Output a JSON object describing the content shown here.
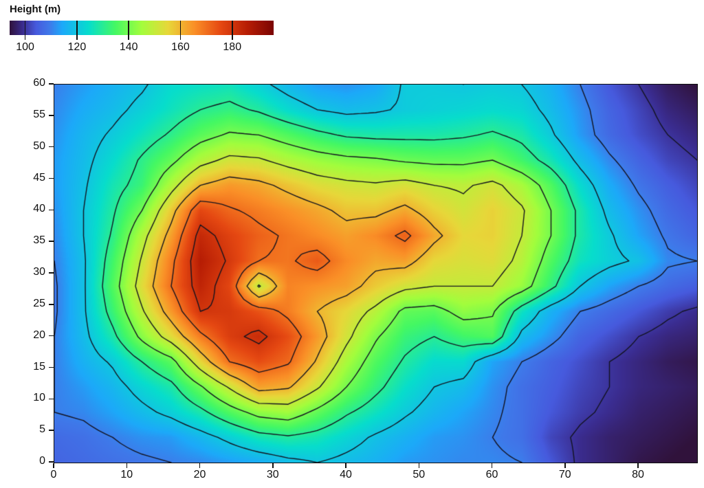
{
  "title": {
    "text": "Height (m)"
  },
  "colorbar": {
    "vmin": 94,
    "vmax": 196,
    "ticks": [
      {
        "v": 100,
        "label": "100"
      },
      {
        "v": 120,
        "label": "120"
      },
      {
        "v": 140,
        "label": "140"
      },
      {
        "v": 160,
        "label": "160"
      },
      {
        "v": 180,
        "label": "180"
      }
    ]
  },
  "axes": {
    "x_range": [
      0,
      88
    ],
    "y_range": [
      0,
      60
    ],
    "x_ticks": [
      {
        "v": 0,
        "label": "0"
      },
      {
        "v": 10,
        "label": "10"
      },
      {
        "v": 20,
        "label": "20"
      },
      {
        "v": 30,
        "label": "30"
      },
      {
        "v": 40,
        "label": "40"
      },
      {
        "v": 50,
        "label": "50"
      },
      {
        "v": 60,
        "label": "60"
      },
      {
        "v": 70,
        "label": "70"
      },
      {
        "v": 80,
        "label": "80"
      }
    ],
    "y_ticks": [
      {
        "v": 0,
        "label": "0"
      },
      {
        "v": 5,
        "label": "5"
      },
      {
        "v": 10,
        "label": "10"
      },
      {
        "v": 15,
        "label": "15"
      },
      {
        "v": 20,
        "label": "20"
      },
      {
        "v": 25,
        "label": "25"
      },
      {
        "v": 30,
        "label": "30"
      },
      {
        "v": 35,
        "label": "35"
      },
      {
        "v": 40,
        "label": "40"
      },
      {
        "v": 45,
        "label": "45"
      },
      {
        "v": 50,
        "label": "50"
      },
      {
        "v": 55,
        "label": "55"
      },
      {
        "v": 60,
        "label": "60"
      }
    ]
  },
  "chart_data": {
    "type": "heatmap",
    "subtype": "filled-contour-with-contour-lines",
    "title": "Height (m)",
    "xlabel": "",
    "ylabel": "",
    "x_range": [
      0,
      88
    ],
    "y_range": [
      0,
      60
    ],
    "z_units": "m",
    "grid": {
      "x_start": 0,
      "x_step": 4,
      "nx": 23,
      "y_start": 0,
      "y_step": 4,
      "ny": 16
    },
    "z": [
      [
        106,
        107,
        108,
        109,
        110,
        111,
        113,
        115,
        118,
        120,
        118,
        116,
        113,
        112,
        111,
        111,
        110,
        104,
        99,
        97,
        95,
        94,
        93
      ],
      [
        107,
        108,
        110,
        112,
        113,
        117,
        122,
        127,
        129,
        127,
        123,
        119,
        116,
        113,
        112,
        110,
        108,
        102,
        99,
        97,
        96,
        95,
        94
      ],
      [
        110,
        111,
        114,
        118,
        122,
        128,
        136,
        143,
        145,
        138,
        131,
        126,
        121,
        117,
        114,
        111,
        108,
        104,
        101,
        99,
        97,
        96,
        95
      ],
      [
        110,
        113,
        117,
        123,
        128,
        139,
        151,
        163,
        161,
        151,
        140,
        132,
        125,
        120,
        118,
        112,
        108,
        105,
        102,
        100,
        98,
        97,
        96
      ],
      [
        110,
        116,
        121,
        130,
        137,
        155,
        170,
        175,
        171,
        159,
        146,
        136,
        129,
        124,
        124,
        114,
        110,
        106,
        103,
        100,
        98,
        96,
        95
      ],
      [
        110,
        118,
        128,
        142,
        154,
        168,
        178,
        182,
        175,
        164,
        152,
        141,
        133,
        130,
        134,
        136,
        118,
        112,
        106,
        103,
        100,
        98,
        97
      ],
      [
        109,
        119,
        133,
        149,
        164,
        180,
        179,
        174,
        168,
        160,
        155,
        148,
        138,
        137,
        143,
        141,
        126,
        116,
        110,
        107,
        104,
        101,
        99
      ],
      [
        109,
        119,
        136,
        154,
        170,
        184,
        176,
        149,
        167,
        165,
        163,
        157,
        152,
        150,
        150,
        150,
        144,
        132,
        120,
        114,
        110,
        107,
        105
      ],
      [
        110,
        119,
        134,
        151,
        168,
        186,
        179,
        170,
        169,
        173,
        166,
        162,
        163,
        155,
        153,
        154,
        148,
        136,
        126,
        122,
        119,
        111,
        110
      ],
      [
        111,
        120,
        131,
        147,
        163,
        183,
        177,
        172,
        169,
        166,
        163,
        166,
        172,
        162,
        155,
        156,
        150,
        140,
        128,
        121,
        114,
        109,
        106
      ],
      [
        112,
        120,
        129,
        140,
        157,
        176,
        171,
        168,
        165,
        162,
        158,
        158,
        162,
        156,
        152,
        156,
        151,
        140,
        128,
        118,
        112,
        107,
        104
      ],
      [
        113,
        119,
        127,
        133,
        147,
        160,
        164,
        162,
        158,
        154,
        152,
        151,
        153,
        150,
        149,
        152,
        146,
        136,
        124,
        115,
        109,
        105,
        102
      ],
      [
        113,
        118,
        124,
        131,
        138,
        147,
        152,
        151,
        147,
        144,
        142,
        141,
        139,
        138,
        138,
        140,
        134,
        127,
        118,
        111,
        106,
        102,
        100
      ],
      [
        112,
        117,
        121,
        126,
        131,
        137,
        141,
        140,
        136,
        132,
        129,
        128,
        128,
        128,
        129,
        131,
        128,
        121,
        113,
        107,
        103,
        100,
        98
      ],
      [
        111,
        115,
        118,
        122,
        126,
        130,
        132,
        129,
        124,
        120,
        118,
        119,
        121,
        122,
        123,
        124,
        123,
        118,
        112,
        106,
        102,
        98,
        96
      ],
      [
        110,
        113,
        116,
        119,
        124,
        125,
        126,
        122,
        117,
        113,
        112,
        114,
        121,
        121,
        120,
        121,
        120,
        116,
        110,
        104,
        100,
        96,
        94
      ]
    ],
    "contour_levels": [
      100,
      110,
      120,
      130,
      140,
      150,
      160,
      170,
      180,
      190
    ],
    "contour_line_color": "#13131f",
    "colormap": {
      "name": "turbo",
      "vmin": 94,
      "vmax": 196,
      "stops": [
        {
          "t": 0.0,
          "color": "#30123b"
        },
        {
          "t": 0.05,
          "color": "#3a2c8f"
        },
        {
          "t": 0.1,
          "color": "#465add"
        },
        {
          "t": 0.15,
          "color": "#3f78e9"
        },
        {
          "t": 0.2,
          "color": "#1ca9f9"
        },
        {
          "t": 0.3,
          "color": "#07ddcc"
        },
        {
          "t": 0.4,
          "color": "#44f863"
        },
        {
          "t": 0.5,
          "color": "#a3fd3c"
        },
        {
          "t": 0.6,
          "color": "#e7d739"
        },
        {
          "t": 0.7,
          "color": "#fa8f27"
        },
        {
          "t": 0.8,
          "color": "#e54812"
        },
        {
          "t": 0.9,
          "color": "#b71d04"
        },
        {
          "t": 1.0,
          "color": "#7a0403"
        }
      ]
    },
    "legend_position": "top-left-horizontal-colorbar",
    "grid_lines": false
  },
  "layout_colors": {
    "background": "#ffffff",
    "axis_color": "#111111"
  }
}
